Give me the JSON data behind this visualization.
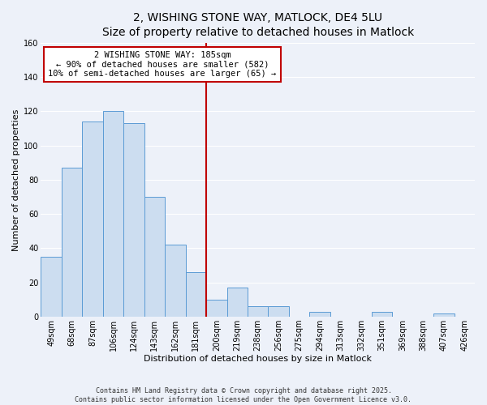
{
  "title": "2, WISHING STONE WAY, MATLOCK, DE4 5LU",
  "subtitle": "Size of property relative to detached houses in Matlock",
  "xlabel": "Distribution of detached houses by size in Matlock",
  "ylabel": "Number of detached properties",
  "bar_labels": [
    "49sqm",
    "68sqm",
    "87sqm",
    "106sqm",
    "124sqm",
    "143sqm",
    "162sqm",
    "181sqm",
    "200sqm",
    "219sqm",
    "238sqm",
    "256sqm",
    "275sqm",
    "294sqm",
    "313sqm",
    "332sqm",
    "351sqm",
    "369sqm",
    "388sqm",
    "407sqm",
    "426sqm"
  ],
  "bar_heights": [
    35,
    87,
    114,
    120,
    113,
    70,
    42,
    26,
    10,
    17,
    6,
    6,
    0,
    3,
    0,
    0,
    3,
    0,
    0,
    2,
    0
  ],
  "bar_color": "#ccddf0",
  "bar_edge_color": "#5b9bd5",
  "vline_x": 7.5,
  "vline_color": "#c00000",
  "annotation_text": "2 WISHING STONE WAY: 185sqm\n← 90% of detached houses are smaller (582)\n10% of semi-detached houses are larger (65) →",
  "annotation_box_color": "#ffffff",
  "annotation_box_edge": "#c00000",
  "ylim": [
    0,
    160
  ],
  "yticks": [
    0,
    20,
    40,
    60,
    80,
    100,
    120,
    140,
    160
  ],
  "footer_line1": "Contains HM Land Registry data © Crown copyright and database right 2025.",
  "footer_line2": "Contains public sector information licensed under the Open Government Licence v3.0.",
  "bg_color": "#edf1f9",
  "plot_bg_color": "#edf1f9",
  "grid_color": "#ffffff",
  "title_fontsize": 10,
  "subtitle_fontsize": 9,
  "axis_label_fontsize": 8,
  "tick_fontsize": 7,
  "annotation_fontsize": 7.5
}
